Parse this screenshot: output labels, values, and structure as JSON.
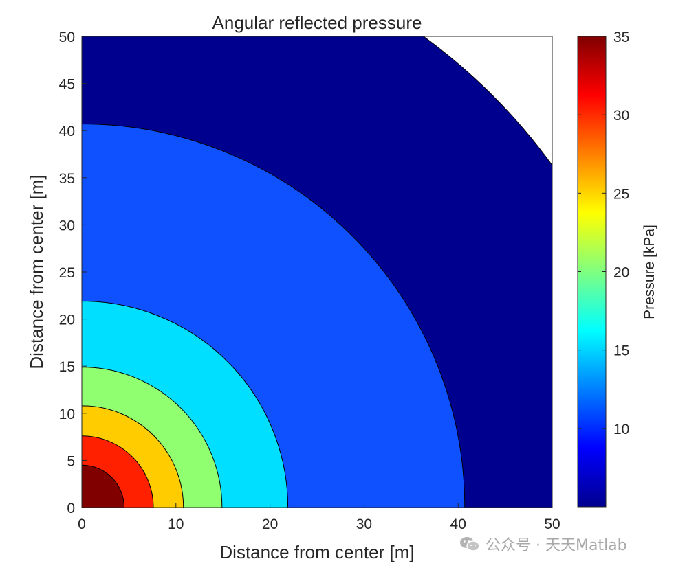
{
  "chart_data": {
    "type": "contourf",
    "title": "Angular reflected pressure",
    "xlabel": "Distance from center [m]",
    "ylabel": "Distance from center [m]",
    "xlim": [
      0,
      50
    ],
    "ylim": [
      0,
      50
    ],
    "x_ticks": [
      0,
      10,
      20,
      30,
      40,
      50
    ],
    "y_ticks": [
      0,
      5,
      10,
      15,
      20,
      25,
      30,
      35,
      40,
      45,
      50
    ],
    "contour_radii": [
      4.5,
      7.6,
      10.8,
      14.9,
      21.9,
      40.7,
      61.8
    ],
    "band_colors": [
      "#800000",
      "#ff2000",
      "#ffcc00",
      "#90ff70",
      "#00dfff",
      "#0f50ff",
      "#00008f"
    ],
    "outside_color": "#ffffff",
    "colorbar": {
      "label": "Pressure [kPa]",
      "range": [
        5,
        35
      ],
      "ticks": [
        10,
        15,
        20,
        25,
        30,
        35
      ],
      "colormap": "jet"
    }
  },
  "watermark": {
    "icon": "wechat-icon",
    "text": "公众号 · 天天Matlab"
  }
}
